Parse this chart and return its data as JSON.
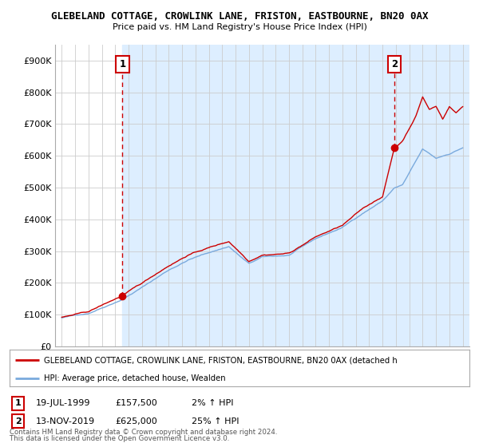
{
  "title": "GLEBELAND COTTAGE, CROWLINK LANE, FRISTON, EASTBOURNE, BN20 0AX",
  "subtitle": "Price paid vs. HM Land Registry's House Price Index (HPI)",
  "legend_line1": "GLEBELAND COTTAGE, CROWLINK LANE, FRISTON, EASTBOURNE, BN20 0AX (detached h",
  "legend_line2": "HPI: Average price, detached house, Wealden",
  "footer1": "Contains HM Land Registry data © Crown copyright and database right 2024.",
  "footer2": "This data is licensed under the Open Government Licence v3.0.",
  "annotation1_label": "1",
  "annotation1_date": "19-JUL-1999",
  "annotation1_price": "£157,500",
  "annotation1_detail": "2% ↑ HPI",
  "annotation2_label": "2",
  "annotation2_date": "13-NOV-2019",
  "annotation2_price": "£625,000",
  "annotation2_detail": "25% ↑ HPI",
  "sale1_x": 1999.54,
  "sale1_y": 157500,
  "sale2_x": 2019.87,
  "sale2_y": 625000,
  "ylim": [
    0,
    950000
  ],
  "xlim": [
    1994.5,
    2025.5
  ],
  "price_color": "#cc0000",
  "hpi_color": "#7aaadd",
  "background_color": "#ffffff",
  "grid_color": "#cccccc",
  "shade_color": "#ddeeff"
}
